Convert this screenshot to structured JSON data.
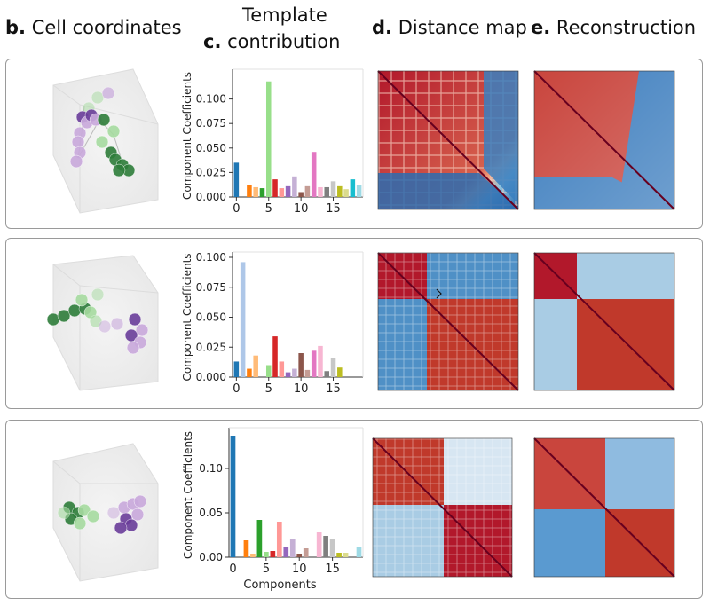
{
  "headers": {
    "b": {
      "letter": "b.",
      "text": "Cell coordinates"
    },
    "c": {
      "letter": "c.",
      "line1": "Template",
      "line2": "contribution"
    },
    "d": {
      "letter": "d.",
      "text": "Distance map"
    },
    "e": {
      "letter": "e.",
      "text": "Reconstruction"
    }
  },
  "colors": {
    "green_dark": "#2e7d3a",
    "green_light": "#a6dba0",
    "purple_dark": "#6a3d9a",
    "purple_light": "#c9a9dc",
    "map_red": "#b2182b",
    "map_blue": "#2166ac"
  },
  "chart_data": [
    {
      "type": "bar",
      "ylabel": "Component Coefficients",
      "xlabel": "",
      "x": [
        0,
        1,
        2,
        3,
        4,
        5,
        6,
        7,
        8,
        9,
        10,
        11,
        12,
        13,
        14,
        15,
        16,
        17,
        18,
        19
      ],
      "values": [
        0.035,
        0,
        0.012,
        0.01,
        0.009,
        0.118,
        0.018,
        0.009,
        0.011,
        0.021,
        0.005,
        0.011,
        0.046,
        0.01,
        0.01,
        0.016,
        0.011,
        0.008,
        0.018,
        0.012
      ],
      "ylim": [
        0,
        0.125
      ],
      "yticks": [
        "0.000",
        "0.025",
        "0.050",
        "0.075",
        "0.100"
      ],
      "xticks": [
        "0",
        "5",
        "10",
        "15"
      ]
    },
    {
      "type": "bar",
      "ylabel": "Component Coefficients",
      "xlabel": "",
      "x": [
        0,
        1,
        2,
        3,
        4,
        5,
        6,
        7,
        8,
        9,
        10,
        11,
        12,
        13,
        14,
        15,
        16,
        17,
        18,
        19
      ],
      "values": [
        0.013,
        0.096,
        0.007,
        0.018,
        0,
        0.01,
        0.034,
        0.013,
        0.004,
        0.007,
        0.02,
        0.006,
        0.022,
        0.026,
        0.005,
        0.016,
        0.008,
        0,
        0,
        0
      ],
      "ylim": [
        0,
        0.1
      ],
      "yticks": [
        "0.000",
        "0.025",
        "0.050",
        "0.075",
        "0.100"
      ],
      "xticks": [
        "0",
        "5",
        "10",
        "15"
      ]
    },
    {
      "type": "bar",
      "ylabel": "Component Coefficients",
      "xlabel": "Components",
      "x": [
        0,
        1,
        2,
        3,
        4,
        5,
        6,
        7,
        8,
        9,
        10,
        11,
        12,
        13,
        14,
        15,
        16,
        17,
        18,
        19
      ],
      "values": [
        0.137,
        0,
        0.019,
        0.004,
        0.042,
        0.006,
        0.007,
        0.04,
        0.011,
        0.02,
        0.004,
        0.01,
        0,
        0.028,
        0.024,
        0.02,
        0.005,
        0.005,
        0,
        0.012
      ],
      "ylim": [
        0,
        0.14
      ],
      "yticks": [
        "0.00",
        "0.05",
        "0.10"
      ],
      "xticks": [
        "0",
        "5",
        "10",
        "15"
      ]
    }
  ]
}
